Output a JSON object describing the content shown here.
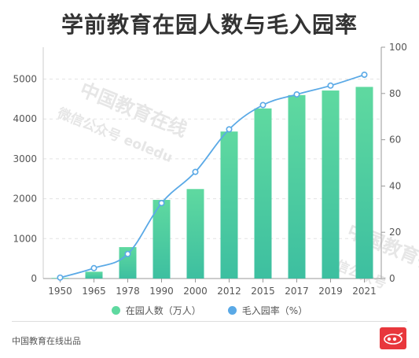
{
  "title": "学前教育在园人数与毛入园率",
  "footer": "中国教育在线出品",
  "watermark": {
    "line1": "中国教育在线",
    "line2": "微信公众号 eoledu",
    "line3": "中国教育在",
    "line4": "微信公众号"
  },
  "legend": {
    "bar_label": "在园人数（万人）",
    "line_label": "毛入园率（%）"
  },
  "colors": {
    "bar_top": "#5fd9a0",
    "bar_bottom": "#3dbfa0",
    "line": "#5aa9e6",
    "logo": "#e8373c"
  },
  "chart_data": {
    "type": "bar",
    "title": "学前教育在园人数与毛入园率",
    "categories": [
      "1950",
      "1965",
      "1978",
      "1990",
      "2000",
      "2012",
      "2015",
      "2017",
      "2019",
      "2021"
    ],
    "series": [
      {
        "name": "在园人数（万人）",
        "type": "bar",
        "axis": "left",
        "values": [
          14,
          171,
          788,
          1972,
          2244,
          3686,
          4265,
          4600,
          4714,
          4805
        ]
      },
      {
        "name": "毛入园率（%）",
        "type": "line",
        "axis": "right",
        "values": [
          0.4,
          4.5,
          10.6,
          32.6,
          46.1,
          64.5,
          75.0,
          79.6,
          83.4,
          88.1
        ]
      }
    ],
    "ylim_left": [
      0,
      5800
    ],
    "yticks_left": [
      0,
      1000,
      2000,
      3000,
      4000,
      5000
    ],
    "ylim_right": [
      0,
      100
    ],
    "yticks_right": [
      0,
      20,
      40,
      60,
      80,
      100
    ],
    "grid": true,
    "legend_position": "bottom"
  }
}
